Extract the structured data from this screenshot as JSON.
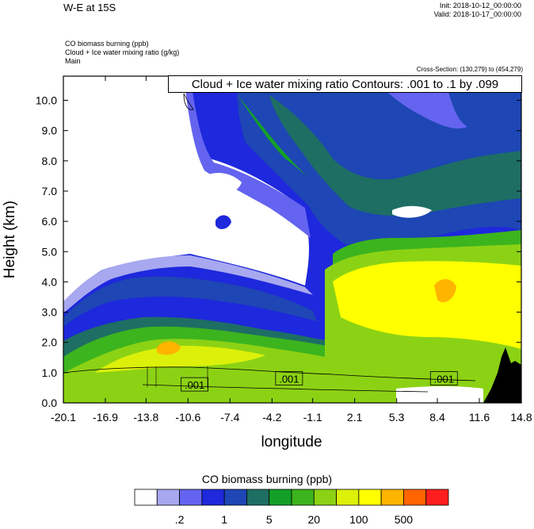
{
  "header": {
    "title": "W-E at 15S",
    "init": "Init: 2018-10-12_00:00:00",
    "valid": "Valid: 2018-10-17_00:00:00",
    "variables": [
      "CO biomass burning   (ppb)",
      "Cloud + Ice water mixing ratio   (g/kg)",
      "Main"
    ],
    "cross_section": "Cross-Section: (130,279) to (454,279)",
    "contour_label": "Cloud + Ice water mixing ratio Contours: .001 to .1 by .099"
  },
  "chart_data": {
    "type": "heatmap",
    "xlabel": "longitude",
    "ylabel": "Height (km)",
    "xticks": [
      "-20.1",
      "-16.9",
      "-13.8",
      "-10.6",
      "-7.4",
      "-4.2",
      "-1.1",
      "2.1",
      "5.3",
      "8.4",
      "11.6",
      "14.8"
    ],
    "xlim": [
      -20.1,
      14.8
    ],
    "yticks": [
      "0.0",
      "1.0",
      "2.0",
      "3.0",
      "4.0",
      "5.0",
      "6.0",
      "7.0",
      "8.0",
      "9.0",
      "10.0"
    ],
    "ylim": [
      0,
      10.8
    ],
    "contour_labels": [
      {
        "text": ".001",
        "x": -10.1,
        "y": 0.6
      },
      {
        "text": ".001",
        "x": -2.9,
        "y": 0.8
      },
      {
        "text": ".001",
        "x": 8.9,
        "y": 0.8
      }
    ],
    "colorbar": {
      "title": "CO biomass burning  (ppb)",
      "colors": [
        "#ffffff",
        "#a8a8f0",
        "#6464f0",
        "#1e28dc",
        "#1e46b4",
        "#1e6e64",
        "#14a028",
        "#3cb41e",
        "#8cd214",
        "#dcf00a",
        "#ffff00",
        "#ffb400",
        "#ff6400",
        "#ff1e1e"
      ],
      "labels": [
        ".2",
        "1",
        "5",
        "20",
        "100",
        "500"
      ]
    }
  }
}
